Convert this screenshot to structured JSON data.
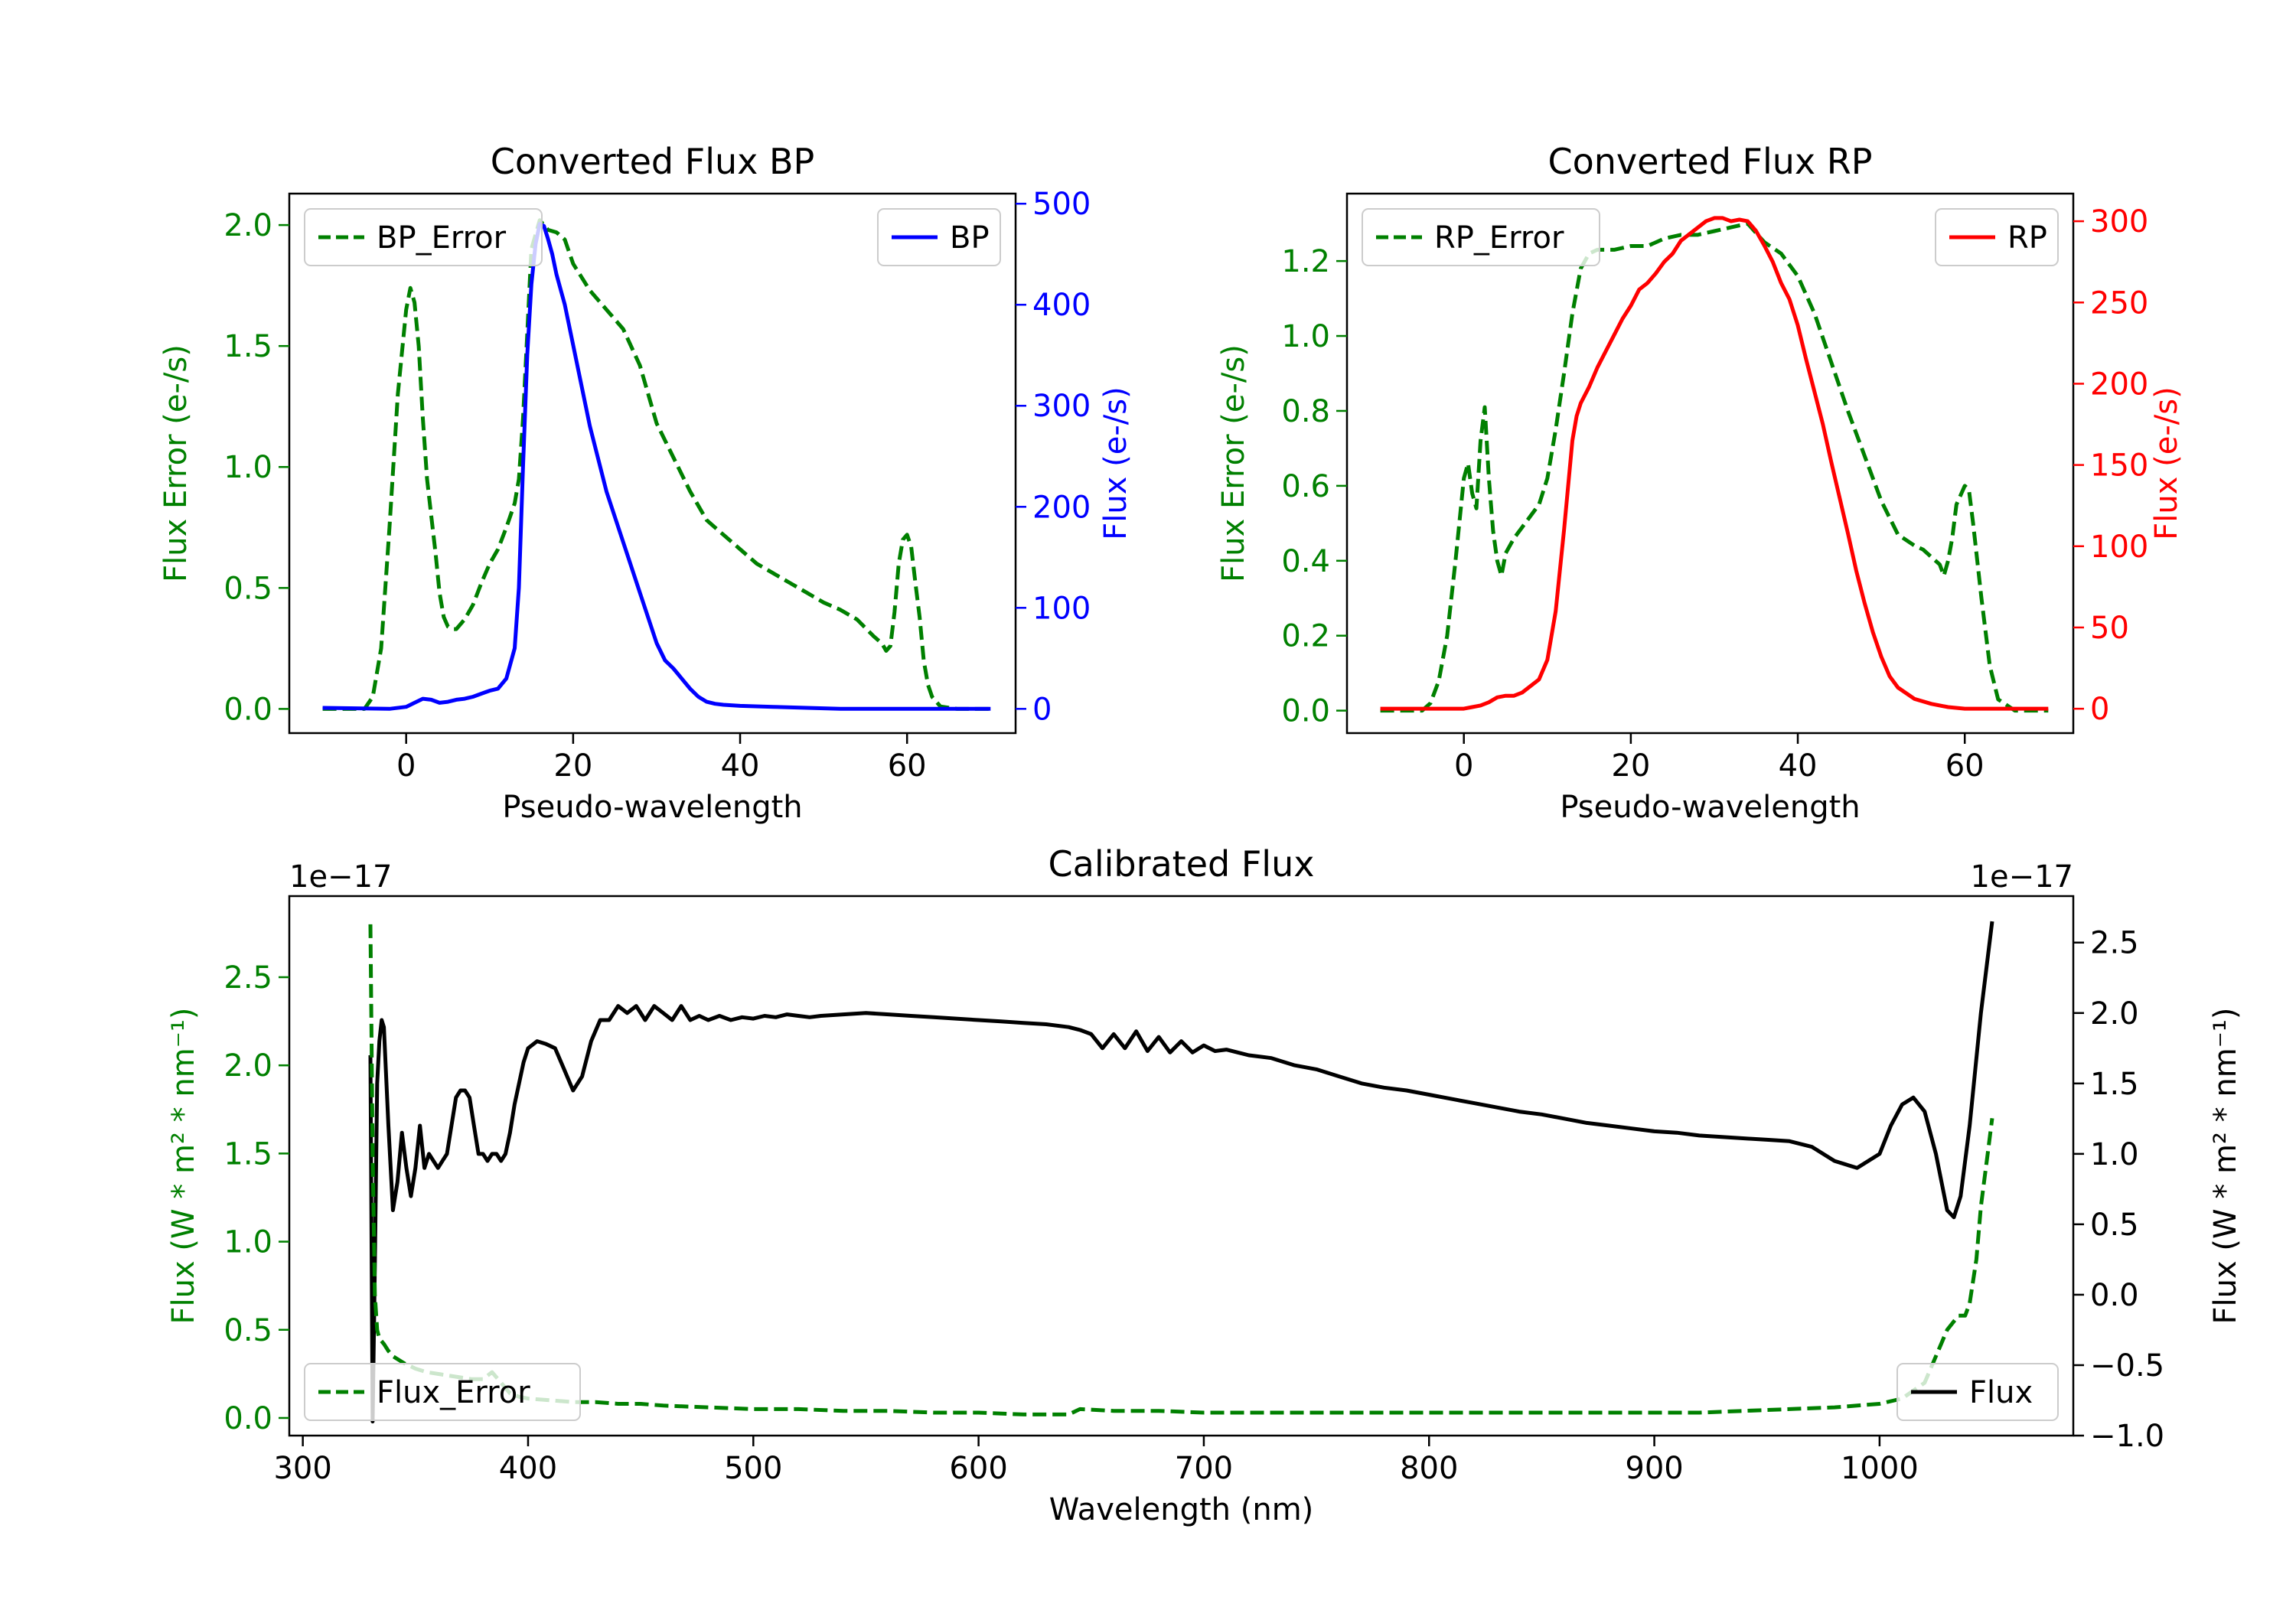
{
  "chart_data": [
    {
      "type": "line",
      "title": "Converted Flux BP",
      "xlabel": "Pseudo-wavelength",
      "xlim": [
        -14,
        73
      ],
      "xticks": [
        0,
        20,
        40,
        60
      ],
      "left_axis": {
        "label": "Flux Error (e-/s)",
        "color": "#008000",
        "ylim": [
          -0.1,
          2.13
        ],
        "ticks": [
          0.0,
          0.5,
          1.0,
          1.5,
          2.0
        ],
        "tick_labels": [
          "0.0",
          "0.5",
          "1.0",
          "1.5",
          "2.0"
        ]
      },
      "right_axis": {
        "label": "Flux (e-/s)",
        "color": "#0000ff",
        "ylim": [
          -24,
          510
        ],
        "ticks": [
          0,
          100,
          200,
          300,
          400,
          500
        ],
        "tick_labels": [
          "0",
          "100",
          "200",
          "300",
          "400",
          "500"
        ]
      },
      "series": [
        {
          "name": "BP_Error",
          "axis": "left",
          "color": "#008000",
          "style": "dashed",
          "x": [
            -10,
            -5,
            -4,
            -3,
            -2,
            -1,
            0,
            0.5,
            1,
            1.5,
            2,
            2.5,
            3,
            3.5,
            4,
            4.5,
            5,
            5.5,
            6,
            7,
            8,
            9,
            10,
            11,
            12,
            13,
            13.5,
            14,
            14.5,
            15,
            16,
            17,
            18,
            19,
            20,
            22,
            24,
            26,
            28,
            30,
            32,
            34,
            36,
            38,
            40,
            42,
            44,
            46,
            48,
            50,
            52,
            54,
            56,
            57,
            57.5,
            58,
            58.5,
            59,
            59.5,
            60,
            60.5,
            61,
            61.5,
            62,
            62.5,
            63,
            64,
            66,
            70
          ],
          "y": [
            0.0,
            0.0,
            0.05,
            0.25,
            0.75,
            1.3,
            1.65,
            1.74,
            1.68,
            1.5,
            1.2,
            0.95,
            0.8,
            0.65,
            0.48,
            0.38,
            0.34,
            0.33,
            0.33,
            0.37,
            0.43,
            0.52,
            0.6,
            0.66,
            0.75,
            0.85,
            0.95,
            1.2,
            1.55,
            1.9,
            2.02,
            1.98,
            1.97,
            1.94,
            1.84,
            1.73,
            1.65,
            1.57,
            1.42,
            1.18,
            1.04,
            0.9,
            0.78,
            0.72,
            0.66,
            0.6,
            0.56,
            0.52,
            0.48,
            0.44,
            0.41,
            0.37,
            0.3,
            0.27,
            0.24,
            0.26,
            0.4,
            0.6,
            0.7,
            0.72,
            0.67,
            0.52,
            0.38,
            0.2,
            0.1,
            0.05,
            0.01,
            0.0,
            0.0
          ]
        },
        {
          "name": "BP",
          "axis": "right",
          "color": "#0000ff",
          "style": "solid",
          "x": [
            -10,
            -2,
            0,
            1,
            2,
            3,
            4,
            5,
            6,
            7,
            8,
            9,
            10,
            11,
            12,
            13,
            13.5,
            14,
            14.5,
            15,
            15.5,
            16,
            16.5,
            17,
            17.5,
            18,
            19,
            20,
            22,
            24,
            26,
            28,
            30,
            31,
            32,
            33,
            34,
            35,
            36,
            37,
            38,
            40,
            44,
            48,
            52,
            56,
            60,
            65,
            70
          ],
          "y": [
            1,
            0,
            2,
            6,
            10,
            9,
            6,
            7,
            9,
            10,
            12,
            15,
            18,
            20,
            30,
            60,
            120,
            240,
            350,
            420,
            460,
            480,
            478,
            465,
            450,
            430,
            400,
            360,
            280,
            215,
            165,
            115,
            65,
            48,
            40,
            30,
            20,
            12,
            7,
            5,
            4,
            3,
            2,
            1,
            0,
            0,
            0,
            0,
            0
          ]
        }
      ],
      "legend": {
        "left": "upper-left",
        "right": "upper-right"
      }
    },
    {
      "type": "line",
      "title": "Converted Flux RP",
      "xlabel": "Pseudo-wavelength",
      "xlim": [
        -14,
        73
      ],
      "xticks": [
        0,
        20,
        40,
        60
      ],
      "left_axis": {
        "label": "Flux Error (e-/s)",
        "color": "#008000",
        "ylim": [
          -0.06,
          1.38
        ],
        "ticks": [
          0.0,
          0.2,
          0.4,
          0.6,
          0.8,
          1.0,
          1.2
        ],
        "tick_labels": [
          "0.0",
          "0.2",
          "0.4",
          "0.6",
          "0.8",
          "1.0",
          "1.2"
        ]
      },
      "right_axis": {
        "label": "Flux (e-/s)",
        "color": "#ff0000",
        "ylim": [
          -15,
          317
        ],
        "ticks": [
          0,
          50,
          100,
          150,
          200,
          250,
          300
        ],
        "tick_labels": [
          "0",
          "50",
          "100",
          "150",
          "200",
          "250",
          "300"
        ]
      },
      "series": [
        {
          "name": "RP_Error",
          "axis": "left",
          "color": "#008000",
          "style": "dashed",
          "x": [
            -10,
            -5,
            -4,
            -3,
            -2,
            -1,
            0,
            0.5,
            1,
            1.5,
            2,
            2.5,
            3,
            3.5,
            4,
            4.5,
            5,
            6,
            7,
            8,
            9,
            10,
            11,
            12,
            13,
            14,
            15,
            16,
            18,
            20,
            22,
            24,
            26,
            28,
            30,
            32,
            34,
            36,
            38,
            40,
            42,
            44,
            46,
            48,
            50,
            52,
            54,
            55,
            56,
            57,
            57.5,
            58,
            58.5,
            59,
            60,
            60.5,
            61,
            62,
            63,
            64,
            66,
            70
          ],
          "y": [
            0.0,
            0.0,
            0.02,
            0.08,
            0.2,
            0.4,
            0.62,
            0.66,
            0.58,
            0.54,
            0.72,
            0.81,
            0.62,
            0.48,
            0.4,
            0.36,
            0.42,
            0.46,
            0.49,
            0.52,
            0.55,
            0.62,
            0.75,
            0.9,
            1.06,
            1.18,
            1.22,
            1.23,
            1.23,
            1.24,
            1.24,
            1.26,
            1.27,
            1.27,
            1.28,
            1.29,
            1.3,
            1.25,
            1.22,
            1.16,
            1.06,
            0.93,
            0.8,
            0.68,
            0.56,
            0.47,
            0.44,
            0.43,
            0.41,
            0.39,
            0.36,
            0.4,
            0.46,
            0.55,
            0.6,
            0.59,
            0.5,
            0.3,
            0.12,
            0.03,
            0.0,
            0.0
          ]
        },
        {
          "name": "RP",
          "axis": "right",
          "color": "#ff0000",
          "style": "solid",
          "x": [
            -10,
            -2,
            0,
            1,
            2,
            3,
            4,
            5,
            6,
            7,
            8,
            9,
            10,
            11,
            12,
            13,
            13.5,
            14,
            15,
            16,
            17,
            18,
            19,
            20,
            21,
            22,
            23,
            24,
            25,
            26,
            27,
            28,
            29,
            30,
            31,
            32,
            33,
            34,
            35,
            36,
            37,
            38,
            39,
            40,
            41,
            42,
            43,
            44,
            45,
            46,
            47,
            48,
            49,
            50,
            51,
            52,
            54,
            56,
            58,
            60,
            62,
            64,
            66,
            70
          ],
          "y": [
            0,
            0,
            0,
            1,
            2,
            4,
            7,
            8,
            8,
            10,
            14,
            18,
            30,
            60,
            110,
            165,
            180,
            188,
            198,
            210,
            220,
            230,
            240,
            248,
            258,
            262,
            268,
            275,
            280,
            288,
            292,
            296,
            300,
            302,
            302,
            300,
            301,
            300,
            294,
            285,
            275,
            262,
            252,
            236,
            215,
            195,
            175,
            152,
            130,
            108,
            85,
            65,
            47,
            32,
            20,
            13,
            6,
            3,
            1,
            0,
            0,
            0,
            0,
            0
          ]
        }
      ],
      "legend": {
        "left": "upper-left",
        "right": "upper-right"
      }
    },
    {
      "type": "line",
      "title": "Calibrated Flux",
      "xlabel": "Wavelength (nm)",
      "xlim": [
        294,
        1086
      ],
      "xticks": [
        300,
        400,
        500,
        600,
        700,
        800,
        900,
        1000
      ],
      "left_axis": {
        "label": "Flux (W * m² * nm⁻¹)",
        "color": "#008000",
        "offset_text": "1e−17",
        "ylim": [
          -0.1,
          2.96
        ],
        "ticks": [
          0.0,
          0.5,
          1.0,
          1.5,
          2.0,
          2.5
        ],
        "tick_labels": [
          "0.0",
          "0.5",
          "1.0",
          "1.5",
          "2.0",
          "2.5"
        ]
      },
      "right_axis": {
        "label": "Flux (W * m² * nm⁻¹)",
        "color": "#000000",
        "offset_text": "1e−17",
        "ylim": [
          -1.0,
          2.83
        ],
        "ticks": [
          -1.0,
          -0.5,
          0.0,
          0.5,
          1.0,
          1.5,
          2.0,
          2.5
        ],
        "tick_labels": [
          "−1.0",
          "−0.5",
          "0.0",
          "0.5",
          "1.0",
          "1.5",
          "2.0",
          "2.5"
        ]
      },
      "series": [
        {
          "name": "Flux",
          "axis": "right",
          "color": "#000000",
          "style": "solid",
          "x": [
            330,
            331,
            332,
            333,
            334,
            335,
            336,
            338,
            340,
            342,
            344,
            346,
            348,
            350,
            352,
            354,
            356,
            358,
            360,
            362,
            364,
            366,
            368,
            370,
            372,
            374,
            376,
            378,
            380,
            382,
            384,
            386,
            388,
            390,
            392,
            394,
            396,
            398,
            400,
            404,
            408,
            412,
            416,
            420,
            424,
            428,
            432,
            436,
            440,
            444,
            448,
            452,
            456,
            460,
            464,
            468,
            472,
            476,
            480,
            485,
            490,
            495,
            500,
            505,
            510,
            515,
            520,
            525,
            530,
            540,
            550,
            560,
            570,
            580,
            590,
            600,
            610,
            620,
            630,
            640,
            645,
            650,
            655,
            660,
            665,
            670,
            675,
            680,
            685,
            690,
            695,
            700,
            705,
            710,
            715,
            720,
            730,
            740,
            750,
            760,
            770,
            780,
            790,
            800,
            810,
            820,
            830,
            840,
            850,
            860,
            870,
            880,
            890,
            900,
            910,
            920,
            930,
            940,
            950,
            960,
            970,
            980,
            990,
            1000,
            1005,
            1010,
            1015,
            1020,
            1025,
            1030,
            1033,
            1036,
            1040,
            1045,
            1050
          ],
          "y": [
            1.7,
            -0.9,
            0.2,
            1.5,
            1.8,
            1.95,
            1.9,
            1.2,
            0.6,
            0.8,
            1.15,
            0.9,
            0.7,
            0.9,
            1.2,
            0.9,
            1.0,
            0.95,
            0.9,
            0.95,
            1.0,
            1.2,
            1.4,
            1.45,
            1.45,
            1.4,
            1.2,
            1.0,
            1.0,
            0.95,
            1.0,
            1.0,
            0.95,
            1.0,
            1.15,
            1.35,
            1.5,
            1.65,
            1.75,
            1.8,
            1.78,
            1.75,
            1.6,
            1.45,
            1.55,
            1.8,
            1.95,
            1.95,
            2.05,
            2.0,
            2.05,
            1.95,
            2.05,
            2.0,
            1.95,
            2.05,
            1.95,
            1.98,
            1.95,
            1.98,
            1.95,
            1.97,
            1.96,
            1.98,
            1.97,
            1.99,
            1.98,
            1.97,
            1.98,
            1.99,
            2.0,
            1.99,
            1.98,
            1.97,
            1.96,
            1.95,
            1.94,
            1.93,
            1.92,
            1.9,
            1.88,
            1.85,
            1.75,
            1.85,
            1.75,
            1.87,
            1.73,
            1.83,
            1.72,
            1.8,
            1.72,
            1.77,
            1.73,
            1.74,
            1.72,
            1.7,
            1.68,
            1.63,
            1.6,
            1.55,
            1.5,
            1.47,
            1.45,
            1.42,
            1.39,
            1.36,
            1.33,
            1.3,
            1.28,
            1.25,
            1.22,
            1.2,
            1.18,
            1.16,
            1.15,
            1.13,
            1.12,
            1.11,
            1.1,
            1.09,
            1.05,
            0.95,
            0.9,
            1.0,
            1.2,
            1.35,
            1.4,
            1.3,
            1.0,
            0.6,
            0.55,
            0.7,
            1.2,
            2.0,
            2.65
          ]
        },
        {
          "name": "Flux_Error",
          "axis": "left",
          "color": "#008000",
          "style": "dashed",
          "x": [
            330,
            331,
            332,
            333,
            334,
            336,
            338,
            340,
            345,
            350,
            355,
            360,
            365,
            370,
            375,
            380,
            384,
            388,
            392,
            396,
            400,
            410,
            420,
            430,
            440,
            450,
            460,
            480,
            500,
            520,
            540,
            560,
            580,
            600,
            620,
            640,
            645,
            660,
            680,
            700,
            720,
            740,
            760,
            780,
            800,
            820,
            840,
            860,
            880,
            900,
            920,
            940,
            960,
            980,
            1000,
            1010,
            1020,
            1025,
            1030,
            1035,
            1038,
            1040,
            1043,
            1045,
            1048,
            1050
          ],
          "y": [
            2.8,
            1.5,
            0.7,
            0.5,
            0.45,
            0.42,
            0.38,
            0.35,
            0.31,
            0.28,
            0.26,
            0.25,
            0.24,
            0.23,
            0.22,
            0.22,
            0.26,
            0.2,
            0.14,
            0.12,
            0.11,
            0.1,
            0.09,
            0.09,
            0.08,
            0.08,
            0.07,
            0.06,
            0.05,
            0.05,
            0.04,
            0.04,
            0.03,
            0.03,
            0.02,
            0.02,
            0.05,
            0.04,
            0.04,
            0.03,
            0.03,
            0.03,
            0.03,
            0.03,
            0.03,
            0.03,
            0.03,
            0.03,
            0.03,
            0.03,
            0.03,
            0.04,
            0.05,
            0.06,
            0.08,
            0.11,
            0.2,
            0.35,
            0.5,
            0.58,
            0.58,
            0.65,
            0.9,
            1.2,
            1.5,
            1.7
          ]
        }
      ],
      "legend": {
        "left": "lower-left",
        "right": "lower-right"
      }
    }
  ]
}
